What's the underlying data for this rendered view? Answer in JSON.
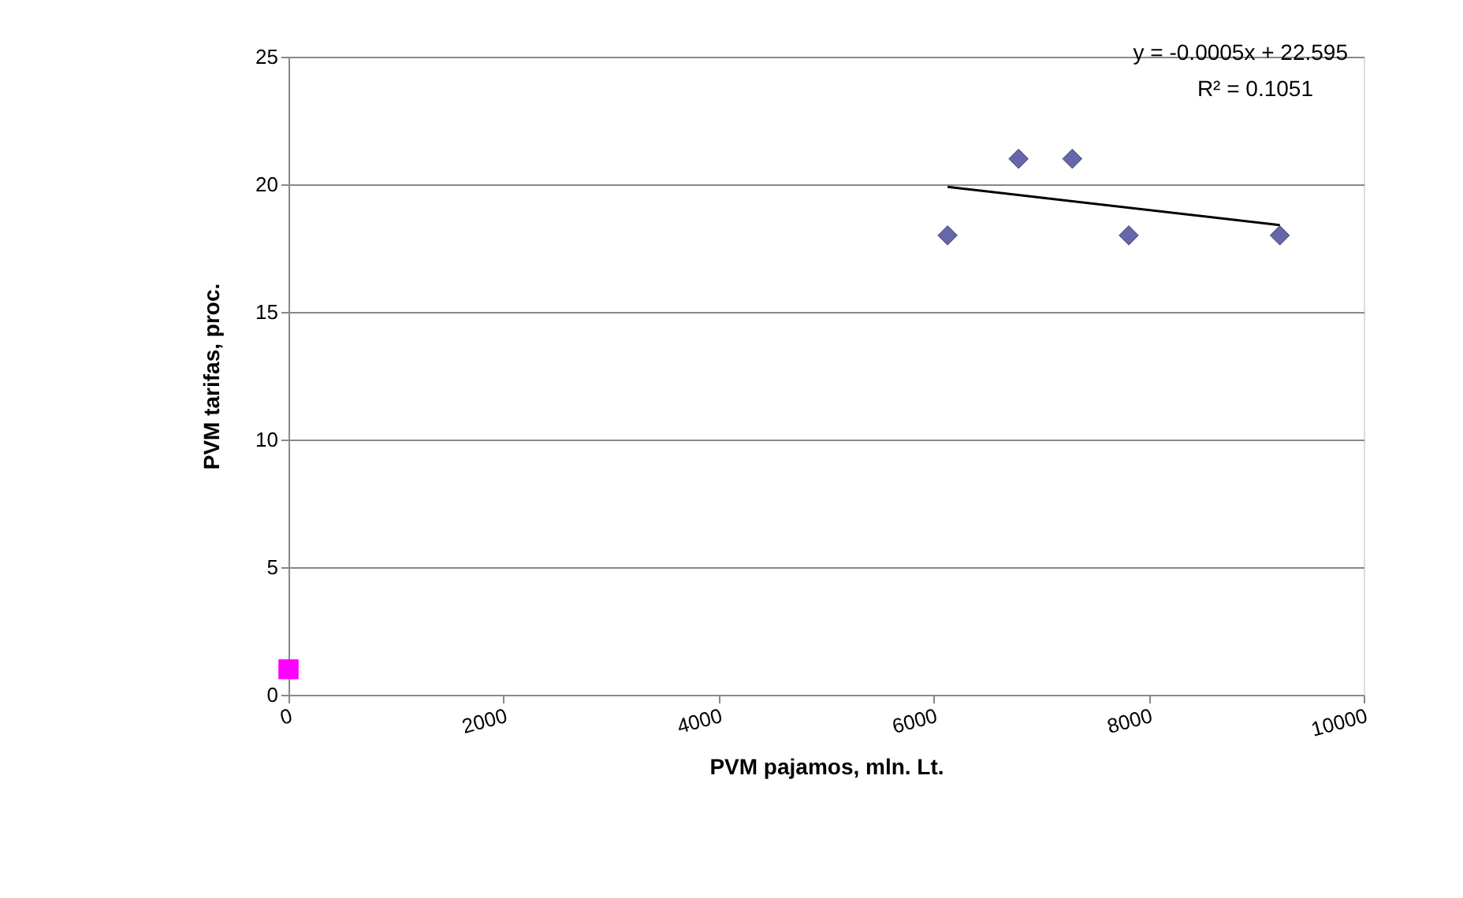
{
  "chart_data": {
    "type": "scatter",
    "xlabel": "PVM pajamos, mln. Lt.",
    "ylabel": "PVM tarifas, proc.",
    "xlim": [
      0,
      10000
    ],
    "xticks": [
      0,
      2000,
      4000,
      6000,
      8000,
      10000
    ],
    "ylim": [
      0,
      25
    ],
    "yticks": [
      0,
      5,
      10,
      15,
      20,
      25
    ],
    "grid": "y",
    "series": [
      {
        "marker": "diamond",
        "color": "#6666aa",
        "x": [
          6130,
          6790,
          7290,
          7815,
          9220
        ],
        "values": [
          18,
          21,
          21,
          18,
          18
        ]
      },
      {
        "marker": "square",
        "color": "#ff00ff",
        "x": [
          0
        ],
        "values": [
          1
        ]
      },
      {
        "type": "line",
        "marker": "none",
        "color": "#000000",
        "x": [
          6130,
          9220
        ],
        "values": [
          19.9,
          18.4
        ]
      }
    ],
    "annotations": [
      "y = -0.0005x + 22.595",
      "R² = 0.1051"
    ]
  }
}
